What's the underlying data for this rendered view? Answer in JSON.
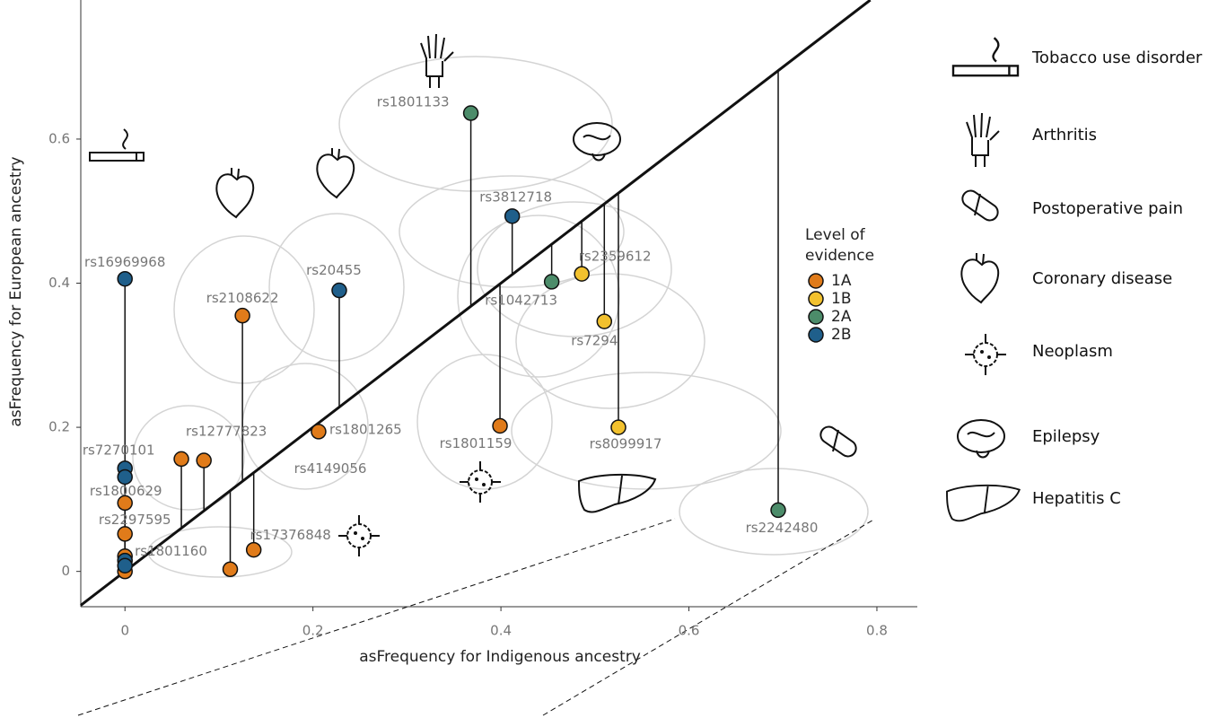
{
  "chart_data": {
    "type": "scatter",
    "xlabel": "asFrequency for Indigenous ancestry",
    "ylabel": "asFrequency for European ancestry",
    "xlim": [
      -0.047,
      0.843
    ],
    "ylim": [
      -0.049,
      0.793
    ],
    "xticks": [
      0,
      0.2,
      0.4,
      0.6,
      0.8
    ],
    "yticks": [
      0,
      0.2,
      0.4,
      0.6
    ],
    "legend_title": "Level of evidence",
    "series": [
      {
        "name": "1A",
        "color": "#e07b1a",
        "x": [
          0.125,
          0.399,
          0.206,
          0.084,
          0.06,
          0.137,
          0.112,
          0,
          0,
          0,
          0
        ],
        "values": [
          0.355,
          0.202,
          0.194,
          0.154,
          0.156,
          0.03,
          0.003,
          0.095,
          0.052,
          0.021,
          0
        ],
        "labels": [
          "rs2108622",
          "rs1801159",
          "rs1801265",
          "rs12777823",
          "rs4149056",
          "rs17376848",
          "rs1801160",
          "rs2297595",
          null,
          null,
          null
        ]
      },
      {
        "name": "1B",
        "color": "#f2c12e",
        "x": [
          0.486,
          0.51,
          0.525
        ],
        "values": [
          0.413,
          0.347,
          0.2
        ],
        "labels": [
          "rs2359612",
          "rs7294",
          "rs8099917"
        ]
      },
      {
        "name": "2A",
        "color": "#4c8c6a",
        "x": [
          0.368,
          0.454,
          0.695
        ],
        "values": [
          0.636,
          0.402,
          0.085
        ],
        "labels": [
          "rs1801133",
          "rs1042713",
          "rs2242480"
        ]
      },
      {
        "name": "2B",
        "color": "#1f5f8b",
        "x": [
          0,
          0.228,
          0.412,
          0,
          0,
          0,
          0
        ],
        "values": [
          0.406,
          0.39,
          0.493,
          0.143,
          0.131,
          0.015,
          0.008
        ],
        "labels": [
          "rs16969968",
          "rs20455",
          "rs3812718",
          "rs7270101",
          "rs1800629",
          null,
          null
        ]
      }
    ]
  },
  "diseases": [
    "Tobacco use disorder",
    "Arthritis",
    "Postoperative pain",
    "Coronary disease",
    "Neoplasm",
    "Epilepsy",
    "Hepatitis C"
  ]
}
